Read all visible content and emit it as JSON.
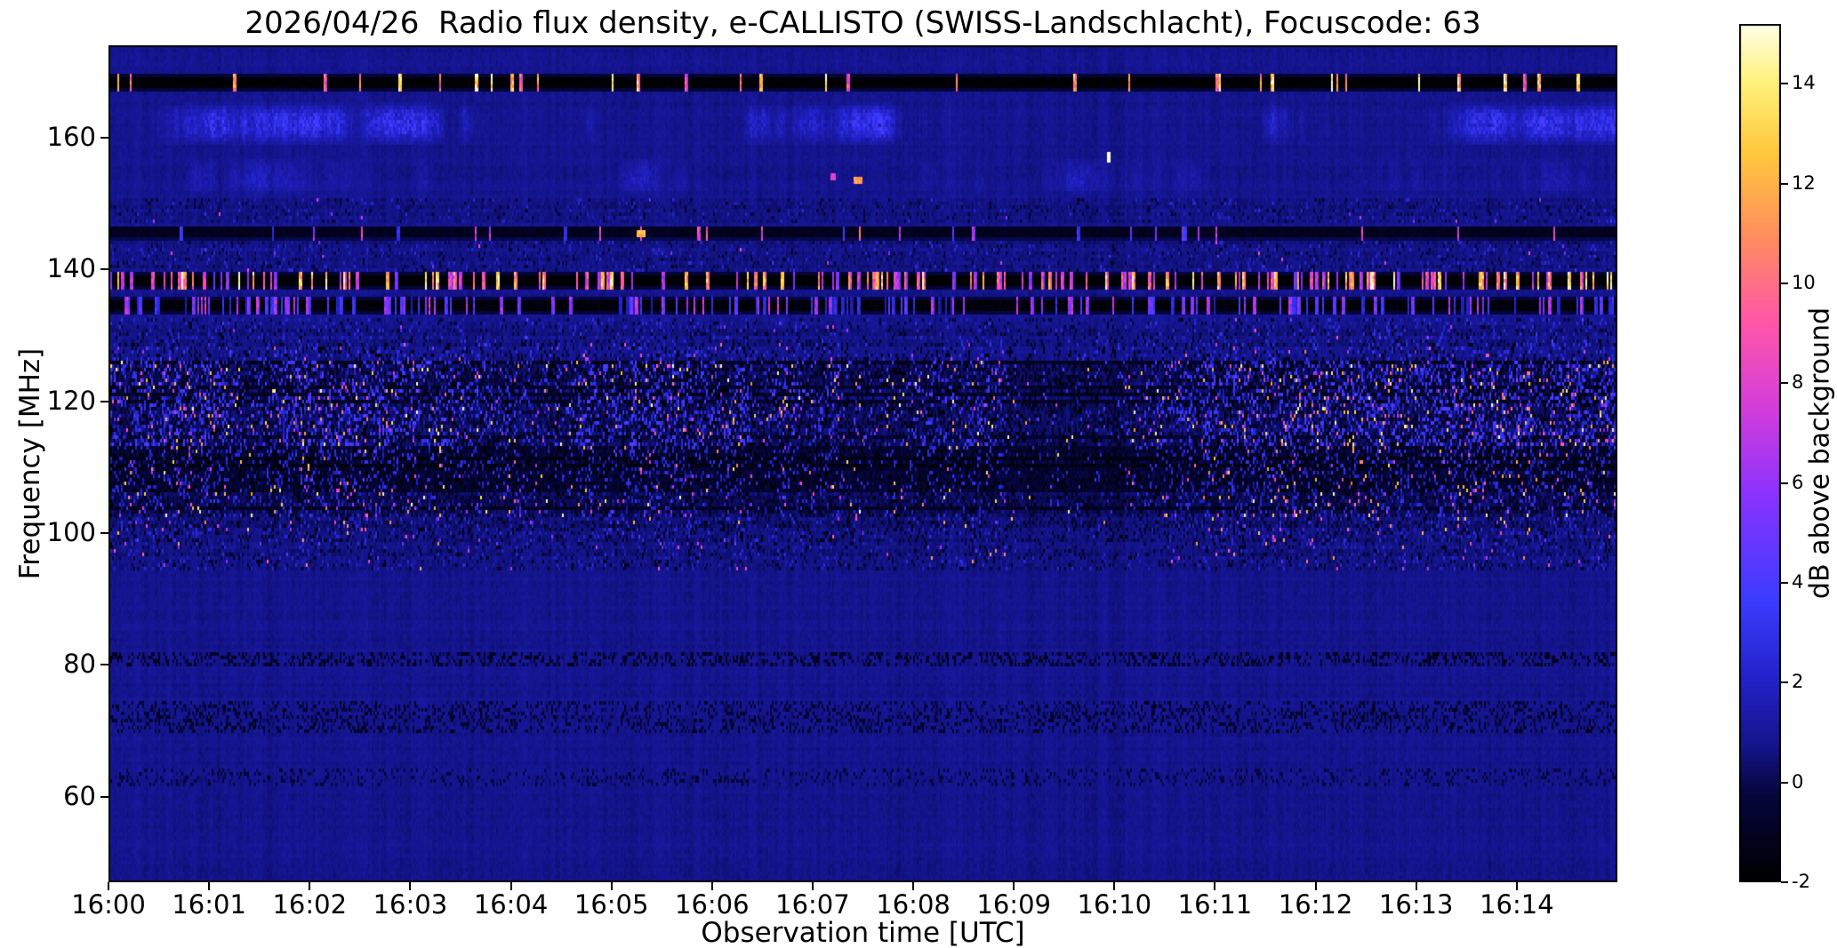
{
  "chart_data": {
    "type": "heatmap",
    "title": "2026/04/26  Radio flux density, e-CALLISTO (SWISS-Landschlacht), Focuscode: 63",
    "xlabel": "Observation time [UTC]",
    "ylabel": "Frequency [MHz]",
    "x_ticks": [
      "16:00",
      "16:01",
      "16:02",
      "16:03",
      "16:04",
      "16:05",
      "16:06",
      "16:07",
      "16:08",
      "16:09",
      "16:10",
      "16:11",
      "16:12",
      "16:13",
      "16:14"
    ],
    "x_range_minutes": [
      0,
      15
    ],
    "y_ticks": [
      160,
      140,
      120,
      100,
      80,
      60
    ],
    "ylim": [
      47,
      174
    ],
    "grid": false,
    "background_level_db": 0.8,
    "colorbar": {
      "label": "dB above background",
      "ticks": [
        14,
        12,
        10,
        8,
        6,
        4,
        2,
        0,
        -2
      ],
      "vmin": -2,
      "vmax": 15.2
    },
    "colormap_stops": [
      {
        "t": 0.0,
        "color": "#000000"
      },
      {
        "t": 0.1,
        "color": "#05053c"
      },
      {
        "t": 0.16,
        "color": "#14148c"
      },
      {
        "t": 0.24,
        "color": "#2323cd"
      },
      {
        "t": 0.33,
        "color": "#3c3cff"
      },
      {
        "t": 0.45,
        "color": "#8a32ff"
      },
      {
        "t": 0.55,
        "color": "#d23cdc"
      },
      {
        "t": 0.65,
        "color": "#ff55aa"
      },
      {
        "t": 0.75,
        "color": "#ff8c5f"
      },
      {
        "t": 0.85,
        "color": "#ffc83c"
      },
      {
        "t": 0.93,
        "color": "#fff078"
      },
      {
        "t": 1.0,
        "color": "#ffffe6"
      }
    ],
    "bands": [
      {
        "name": "rfi-band-168MHz",
        "lo": 167.0,
        "hi": 169.5,
        "kind": "dark_rfi",
        "base": -1.9,
        "blip_prob": 0.055,
        "blip_val": [
          9,
          15.2
        ]
      },
      {
        "name": "enhancement-159-165MHz",
        "lo": 158.8,
        "hi": 165.5,
        "kind": "blue_patch",
        "amp": 1.6
      },
      {
        "name": "enhancement-151-157MHz",
        "lo": 151.0,
        "hi": 157.0,
        "kind": "blue_patch",
        "amp": 0.7
      },
      {
        "name": "speckle-148MHz",
        "lo": 147.0,
        "hi": 150.8,
        "kind": "speckle",
        "base": 0.7,
        "p_bright": 0.002,
        "bright_val": [
          3,
          8
        ],
        "p_blue": 0.05,
        "blue_val": [
          1,
          2.5
        ],
        "p_dark": 0.05,
        "dark_val": [
          -1.0,
          -0.2
        ],
        "use_activity": true
      },
      {
        "name": "rfi-band-145MHz",
        "lo": 144.5,
        "hi": 146.7,
        "kind": "dark_rfi",
        "base": -1.1,
        "blip_prob": 0.03,
        "blip_val": [
          3,
          10
        ]
      },
      {
        "name": "speckle-141MHz",
        "lo": 139.5,
        "hi": 144.3,
        "kind": "speckle",
        "base": 0.7,
        "p_bright": 0.003,
        "bright_val": [
          3,
          9
        ],
        "p_blue": 0.06,
        "blue_val": [
          1.2,
          2.8
        ],
        "p_dark": 0.06,
        "dark_val": [
          -1.0,
          -0.2
        ],
        "use_activity": true
      },
      {
        "name": "rfi-band-138MHz",
        "lo": 137.0,
        "hi": 139.3,
        "kind": "dark_rfi",
        "base": -1.9,
        "blip_prob": 0.2,
        "blip_val": [
          5,
          15.2
        ]
      },
      {
        "name": "rfi-band-134MHz",
        "lo": 133.0,
        "hi": 135.9,
        "kind": "dark_rfi",
        "base": -1.7,
        "blip_prob": 0.22,
        "blip_val": [
          1.5,
          7.5
        ]
      },
      {
        "name": "speckle-130MHz",
        "lo": 128.8,
        "hi": 132.8,
        "kind": "speckle",
        "base": 0.7,
        "p_bright": 0.004,
        "bright_val": [
          3,
          9
        ],
        "p_blue": 0.08,
        "blue_val": [
          1.2,
          3
        ],
        "p_dark": 0.08,
        "dark_val": [
          -1.2,
          -0.2
        ],
        "use_activity": true
      },
      {
        "name": "speckle-127MHz",
        "lo": 126.0,
        "hi": 128.6,
        "kind": "speckle",
        "base": 0.7,
        "p_bright": 0.012,
        "bright_val": [
          4,
          10
        ],
        "p_blue": 0.1,
        "blue_val": [
          1.5,
          3.5
        ],
        "p_dark": 0.15,
        "dark_val": [
          -1.6,
          -0.4
        ],
        "use_activity": true
      },
      {
        "name": "airband-heavy-121-126MHz",
        "lo": 121.3,
        "hi": 126.0,
        "kind": "speckle",
        "base": 0.2,
        "p_bright": 0.03,
        "bright_val": [
          6,
          15.2
        ],
        "p_blue": 0.2,
        "blue_val": [
          1.5,
          4.5
        ],
        "p_dark": 0.3,
        "dark_val": [
          -1.9,
          -0.6
        ],
        "use_activity": true,
        "row_dark_prob": 0.2
      },
      {
        "name": "airband-main-113-121MHz",
        "lo": 113.0,
        "hi": 121.3,
        "kind": "speckle",
        "base": 0.3,
        "p_bright": 0.035,
        "bright_val": [
          6,
          15.2
        ],
        "p_blue": 0.22,
        "blue_val": [
          1.5,
          4.5
        ],
        "p_dark": 0.25,
        "dark_val": [
          -1.9,
          -0.6
        ],
        "use_activity": true,
        "row_dark_prob": 0.25
      },
      {
        "name": "airband-dark-106-113MHz",
        "lo": 106.0,
        "hi": 113.0,
        "kind": "speckle",
        "base": -0.4,
        "p_bright": 0.018,
        "bright_val": [
          5,
          14
        ],
        "p_blue": 0.15,
        "blue_val": [
          1,
          3.5
        ],
        "p_dark": 0.3,
        "dark_val": [
          -1.9,
          -0.8
        ],
        "use_activity": true,
        "row_dark_prob": 0.35
      },
      {
        "name": "airband-104MHz",
        "lo": 102.5,
        "hi": 106.0,
        "kind": "speckle",
        "base": 0.2,
        "p_bright": 0.025,
        "bright_val": [
          5,
          15.2
        ],
        "p_blue": 0.12,
        "blue_val": [
          1,
          3.5
        ],
        "p_dark": 0.2,
        "dark_val": [
          -1.7,
          -0.5
        ],
        "use_activity": true,
        "row_dark_prob": 0.2
      },
      {
        "name": "airband-100MHz",
        "lo": 98.8,
        "hi": 102.5,
        "kind": "speckle",
        "base": 0.5,
        "p_bright": 0.012,
        "bright_val": [
          4,
          13
        ],
        "p_blue": 0.1,
        "blue_val": [
          1,
          3
        ],
        "p_dark": 0.15,
        "dark_val": [
          -1.5,
          -0.3
        ],
        "use_activity": true,
        "row_dark_prob": 0.1
      },
      {
        "name": "airband-96MHz",
        "lo": 94.5,
        "hi": 98.8,
        "kind": "speckle",
        "base": 0.6,
        "p_bright": 0.007,
        "bright_val": [
          4,
          12
        ],
        "p_blue": 0.08,
        "blue_val": [
          1,
          2.8
        ],
        "p_dark": 0.1,
        "dark_val": [
          -1.3,
          -0.2
        ],
        "use_activity": true
      },
      {
        "name": "dark-line-81MHz",
        "lo": 80.0,
        "hi": 82.0,
        "kind": "dark_speckle",
        "p": 0.35,
        "val": [
          -1.6,
          0.1
        ]
      },
      {
        "name": "dark-band-72MHz",
        "lo": 69.5,
        "hi": 74.6,
        "kind": "dark_speckle",
        "p": 0.3,
        "val": [
          -1.3,
          0.2
        ]
      },
      {
        "name": "dark-line-63MHz",
        "lo": 61.6,
        "hi": 64.4,
        "kind": "dark_speckle",
        "p": 0.2,
        "val": [
          -0.9,
          0.3
        ]
      }
    ],
    "events": [
      {
        "name": "bright-dash-145MHz",
        "time_min": 5.3,
        "freq": 145.6,
        "value": 12.5,
        "w": 5,
        "h": 2
      },
      {
        "name": "orange-dash-154MHz",
        "time_min": 7.45,
        "freq": 153.6,
        "value": 11.5,
        "w": 5,
        "h": 2
      },
      {
        "name": "pink-dash-154MHz",
        "time_min": 7.2,
        "freq": 154.3,
        "value": 8,
        "w": 3,
        "h": 2
      },
      {
        "name": "white-point-157MHz",
        "time_min": 9.95,
        "freq": 156.8,
        "value": 15,
        "w": 2,
        "h": 3
      }
    ]
  }
}
